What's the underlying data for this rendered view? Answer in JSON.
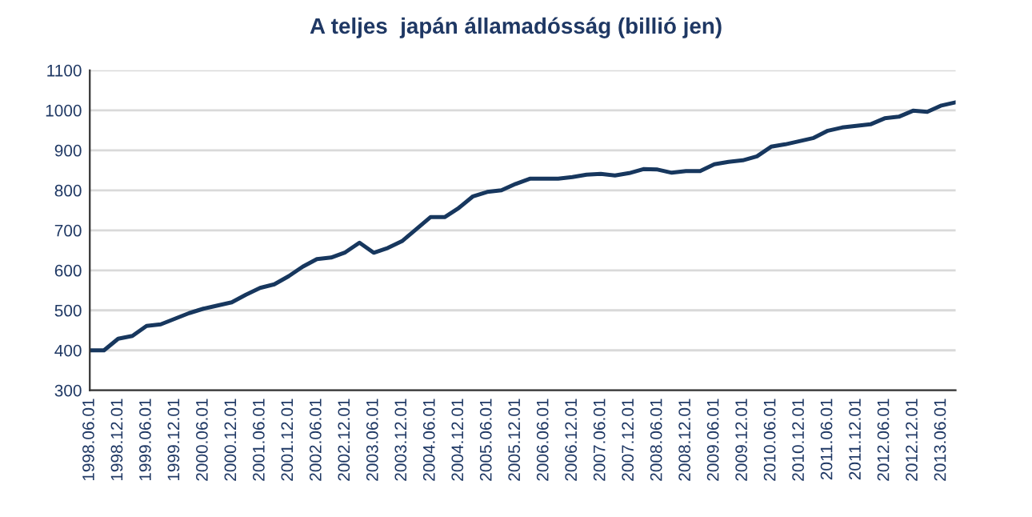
{
  "chart_data": {
    "type": "line",
    "title": "A teljes  japán államadósság (billió jen)",
    "categories": [
      "1998.06.01",
      null,
      "1998.12.01",
      null,
      "1999.06.01",
      null,
      "1999.12.01",
      null,
      "2000.06.01",
      null,
      "2000.12.01",
      null,
      "2001.06.01",
      null,
      "2001.12.01",
      null,
      "2002.06.01",
      null,
      "2002.12.01",
      null,
      "2003.06.01",
      null,
      "2003.12.01",
      null,
      "2004.06.01",
      null,
      "2004.12.01",
      null,
      "2005.06.01",
      null,
      "2005.12.01",
      null,
      "2006.06.01",
      null,
      "2006.12.01",
      null,
      "2007.06.01",
      null,
      "2007.12.01",
      null,
      "2008.06.01",
      null,
      "2008.12.01",
      null,
      "2009.06.01",
      null,
      "2009.12.01",
      null,
      "2010.06.01",
      null,
      "2010.12.01",
      null,
      "2011.06.01",
      null,
      "2011.12.01",
      null,
      "2012.06.01",
      null,
      "2012.12.01",
      null,
      "2013.06.01",
      null
    ],
    "series": [
      {
        "color": "#17375e",
        "values": [
          400,
          400,
          429,
          436,
          461,
          465,
          479,
          493,
          504,
          512,
          520,
          539,
          556,
          565,
          585,
          609,
          628,
          632,
          645,
          669,
          644,
          656,
          673,
          703,
          733,
          733,
          756,
          785,
          796,
          800,
          816,
          829,
          829,
          829,
          833,
          839,
          841,
          837,
          843,
          853,
          852,
          844,
          848,
          848,
          865,
          871,
          875,
          885,
          909,
          915,
          923,
          931,
          949,
          957,
          961,
          965,
          980,
          984,
          999,
          996,
          1012,
          1020
        ]
      }
    ],
    "ylim": [
      300,
      1100
    ],
    "yticks": [
      300,
      400,
      500,
      600,
      700,
      800,
      900,
      1000,
      1100
    ],
    "grid": "y",
    "marker": "none",
    "line_style": "solid"
  }
}
